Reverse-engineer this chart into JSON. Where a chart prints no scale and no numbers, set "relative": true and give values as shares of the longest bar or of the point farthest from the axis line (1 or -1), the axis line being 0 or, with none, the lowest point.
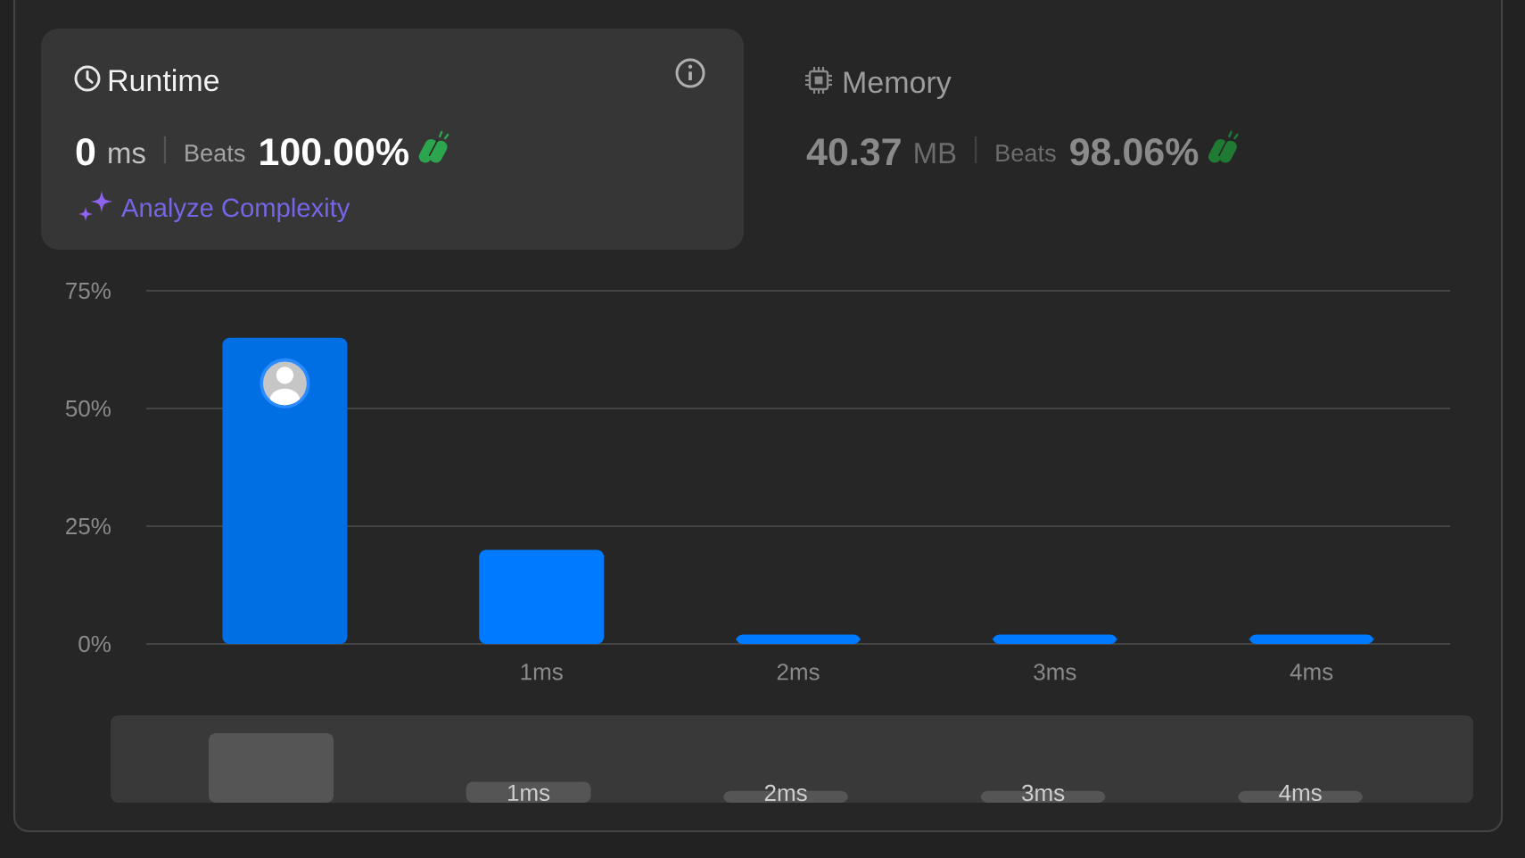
{
  "chart_data": [
    {
      "type": "other",
      "title": "Runtime",
      "annotations": [
        "0",
        "ms",
        "Beats",
        "100.00%",
        "Analyze Complexity"
      ]
    },
    {
      "type": "other",
      "title": "Memory",
      "annotations": [
        "40.37",
        "MB",
        "Beats",
        "98.06%"
      ]
    },
    {
      "type": "bar",
      "categories": [
        null,
        "1ms",
        "2ms",
        "3ms",
        "4ms"
      ],
      "values": [
        65,
        20,
        2,
        2,
        2
      ],
      "colors": [
        "#006FE3",
        "#007AFF",
        "#007AFF",
        "#007AFF",
        "#007AFF"
      ],
      "ylim": [
        0,
        75
      ],
      "yticks": [
        {
          "value": 0,
          "label": "0%"
        },
        {
          "value": 25,
          "label": "25%"
        },
        {
          "value": 50,
          "label": "50%"
        },
        {
          "value": 75,
          "label": "75%"
        }
      ],
      "grid": "y"
    },
    {
      "type": "bar",
      "relative": true,
      "categories": [
        null,
        "1ms",
        "2ms",
        "3ms",
        "4ms"
      ],
      "values": [
        1,
        0.3,
        0.17,
        0.17,
        0.17
      ],
      "color": "#555555"
    }
  ]
}
